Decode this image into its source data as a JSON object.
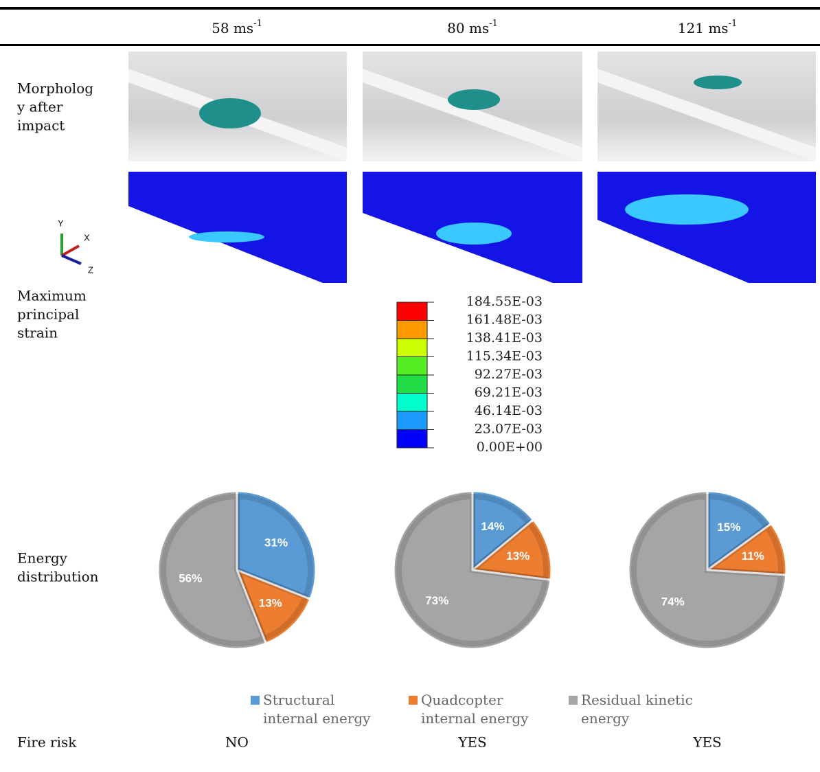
{
  "table": {
    "header": [
      {
        "text": "58 ms",
        "sup": "-1"
      },
      {
        "text": "80 ms",
        "sup": "-1"
      },
      {
        "text": "121 ms",
        "sup": "-1"
      }
    ],
    "rows": {
      "morphology": [
        "Morpholog",
        "y after",
        "impact"
      ],
      "strain": [
        "Maximum",
        "principal",
        "strain"
      ],
      "energy": [
        "Energy",
        "distribution"
      ],
      "fire": {
        "label": "Fire risk",
        "values": [
          "NO",
          "YES",
          "YES"
        ]
      }
    },
    "axes": [
      "Y",
      "X",
      "Z"
    ],
    "colorbar": {
      "labels": [
        "184.55E-03",
        "161.48E-03",
        "138.41E-03",
        "115.34E-03",
        "92.27E-03",
        "69.21E-03",
        "46.14E-03",
        "23.07E-03",
        "0.00E+00"
      ],
      "colors": [
        "#ff0000",
        "#ff9900",
        "#ccff00",
        "#55ee22",
        "#22dd44",
        "#00ffcc",
        "#1e9bff",
        "#0000ff"
      ]
    }
  },
  "chart_data": [
    {
      "type": "pie",
      "categories": [
        "Structural internal energy",
        "Quadcopter internal energy",
        "Residual kinetic energy"
      ],
      "values": [
        31,
        13,
        56
      ],
      "value_labels": [
        "31%",
        "13%",
        "56%"
      ],
      "colors": [
        "#5b9bd5",
        "#ed7d31",
        "#a5a5a5"
      ]
    },
    {
      "type": "pie",
      "categories": [
        "Structural internal energy",
        "Quadcopter internal energy",
        "Residual kinetic energy"
      ],
      "values": [
        14,
        13,
        73
      ],
      "value_labels": [
        "14%",
        "13%",
        "73%"
      ],
      "colors": [
        "#5b9bd5",
        "#ed7d31",
        "#a5a5a5"
      ]
    },
    {
      "type": "pie",
      "categories": [
        "Structural internal energy",
        "Quadcopter internal energy",
        "Residual kinetic energy"
      ],
      "values": [
        15,
        11,
        74
      ],
      "value_labels": [
        "15%",
        "11%",
        "74%"
      ],
      "colors": [
        "#5b9bd5",
        "#ed7d31",
        "#a5a5a5"
      ]
    }
  ]
}
